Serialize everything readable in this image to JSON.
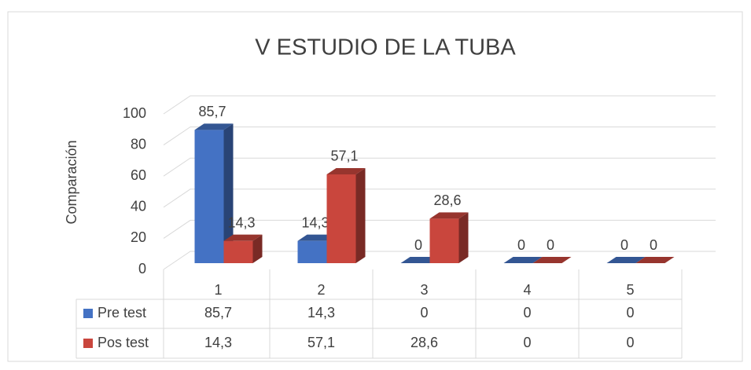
{
  "chart_data": {
    "type": "bar",
    "title": "V ESTUDIO DE LA TUBA",
    "y_label": "Comparación",
    "categories": [
      "1",
      "2",
      "3",
      "4",
      "5"
    ],
    "series": [
      {
        "name": "Pre test",
        "color": "#4472c4",
        "values": [
          85.7,
          14.3,
          0,
          0,
          0
        ],
        "value_labels": [
          "85,7",
          "14,3",
          "0",
          "0",
          "0"
        ]
      },
      {
        "name": "Pos test",
        "color": "#c9463d",
        "values": [
          14.3,
          57.1,
          28.6,
          0,
          0
        ],
        "value_labels": [
          "14,3",
          "57,1",
          "28,6",
          "0",
          "0"
        ]
      }
    ],
    "ylim": [
      0,
      100
    ],
    "yticks": [
      0,
      20,
      40,
      60,
      80,
      100
    ],
    "grid": true,
    "data_table": true
  }
}
